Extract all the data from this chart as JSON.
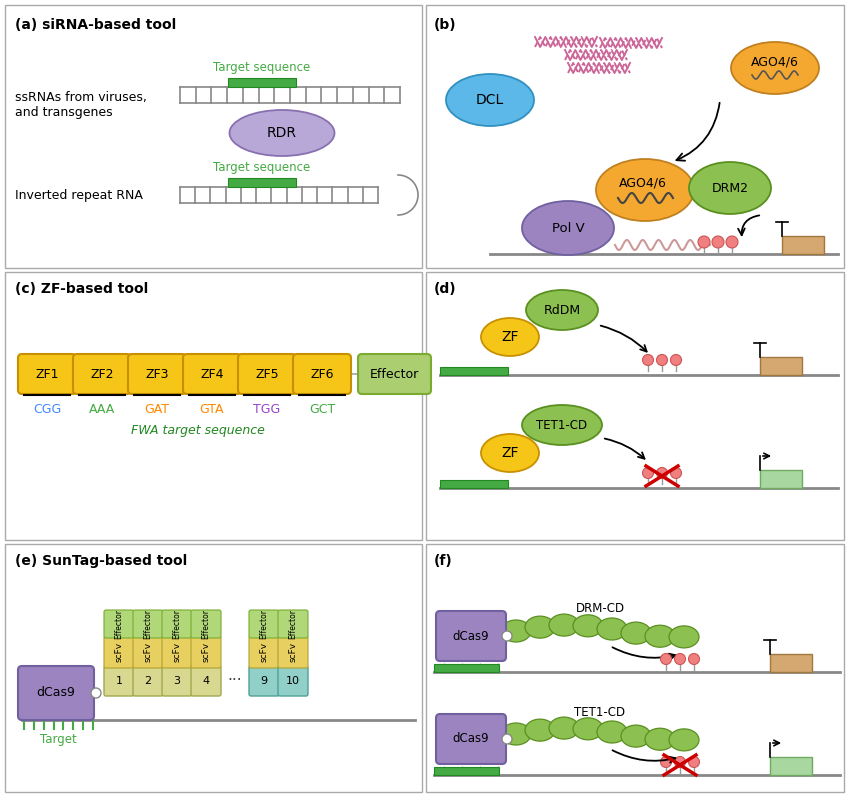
{
  "colors": {
    "gold": "#F5C518",
    "gold_edge": "#C89000",
    "light_green": "#AACE70",
    "light_green_edge": "#7AAA30",
    "blue_oval": "#5BB8E8",
    "blue_oval_edge": "#3090C0",
    "purple_oval": "#9B84C0",
    "purple_oval_edge": "#7060A0",
    "green_oval": "#8CC050",
    "green_oval_edge": "#5A9020",
    "orange_oval": "#F5A830",
    "orange_oval_edge": "#C08020",
    "salmon": "#F08080",
    "salmon_edge": "#CC5555",
    "tan_box": "#D4A870",
    "tan_box_edge": "#A07840",
    "mint_box": "#A8D8A0",
    "mint_box_edge": "#70AA60",
    "red_x": "#CC0000",
    "border": "#AAAAAA",
    "dna_gray": "#888888",
    "green_target": "#44AA44",
    "green_target_edge": "#228822",
    "pink_sirna": "#CC6699",
    "scfv_gold": "#E8D060",
    "scfv_gold_edge": "#B0A030",
    "effector_green": "#B0D878",
    "effector_green_edge": "#78AA30",
    "tag_yellow": "#D8D890",
    "tag_yellow_edge": "#A0A850",
    "tag_teal": "#90D0C8",
    "tag_teal_edge": "#50A098"
  },
  "zf_labels": [
    "ZF1",
    "ZF2",
    "ZF3",
    "ZF4",
    "ZF5",
    "ZF6"
  ],
  "zf_sequences": [
    {
      "text": "CGG",
      "color": "#4488FF"
    },
    {
      "text": "AAA",
      "color": "#44AA44"
    },
    {
      "text": "GAT",
      "color": "#FF8800"
    },
    {
      "text": "GTA",
      "color": "#FF8800"
    },
    {
      "text": "TGG",
      "color": "#9944CC"
    },
    {
      "text": "GCT",
      "color": "#44AA44"
    }
  ]
}
